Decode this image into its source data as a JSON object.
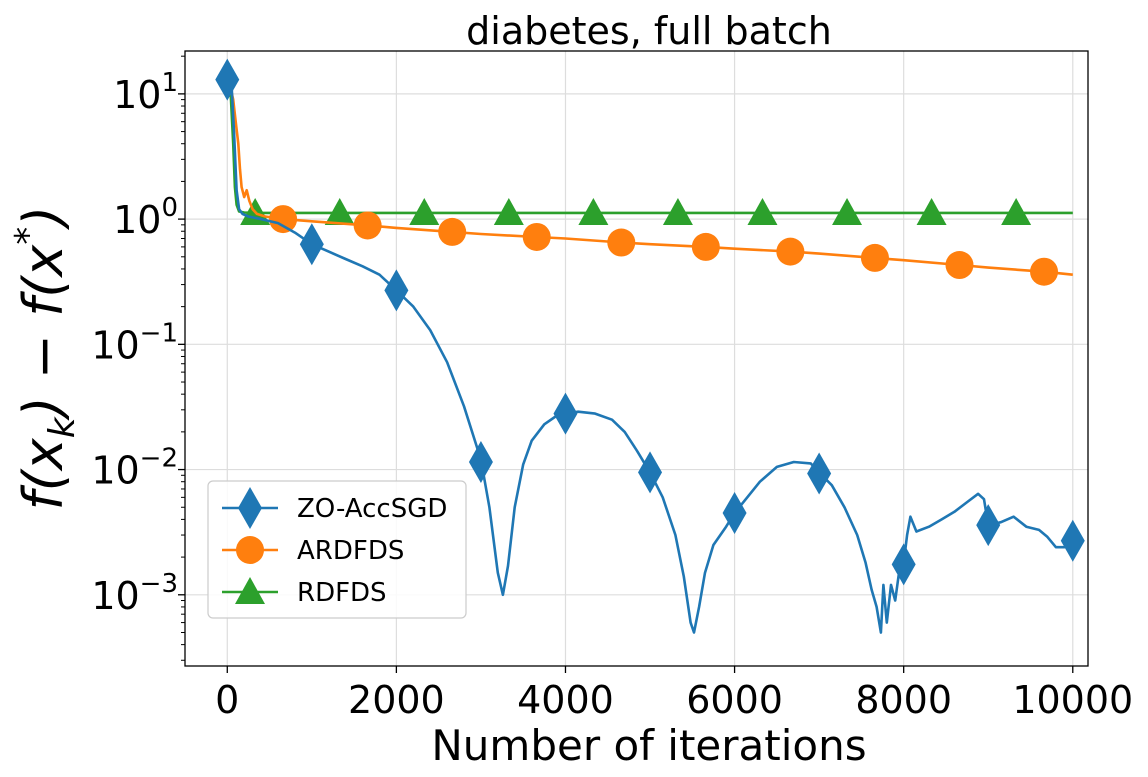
{
  "chart_data": {
    "type": "line",
    "title": "diabetes, full batch",
    "xlabel": "Number of iterations",
    "ylabel_parts": {
      "f1": "f(x",
      "sub": "k",
      "mid": ") − f(x",
      "sup": "*",
      "end": ")"
    },
    "xlim": [
      -500,
      10180
    ],
    "ylim": [
      0.00027,
      22
    ],
    "yscale": "log",
    "grid": true,
    "legend_position": "lower-left",
    "x_ticks": [
      0,
      2000,
      4000,
      6000,
      8000,
      10000
    ],
    "x_tick_labels": [
      "0",
      "2000",
      "4000",
      "6000",
      "8000",
      "10000"
    ],
    "y_ticks": [
      {
        "value": 10,
        "base": "10",
        "exp": "1"
      },
      {
        "value": 1,
        "base": "10",
        "exp": "0"
      },
      {
        "value": 0.1,
        "base": "10",
        "exp": "−1"
      },
      {
        "value": 0.01,
        "base": "10",
        "exp": "−2"
      },
      {
        "value": 0.001,
        "base": "10",
        "exp": "−3"
      }
    ],
    "series": [
      {
        "name": "ZO-AccSGD",
        "color": "#1f77b4",
        "marker": "diamond",
        "points": [
          [
            0,
            13
          ],
          [
            50,
            12
          ],
          [
            80,
            5
          ],
          [
            110,
            1.7
          ],
          [
            140,
            1.2
          ],
          [
            180,
            1.1
          ],
          [
            250,
            1.05
          ],
          [
            400,
            1.0
          ],
          [
            600,
            0.93
          ],
          [
            800,
            0.78
          ],
          [
            1000,
            0.63
          ],
          [
            1200,
            0.55
          ],
          [
            1400,
            0.48
          ],
          [
            1600,
            0.42
          ],
          [
            1800,
            0.36
          ],
          [
            2000,
            0.27
          ],
          [
            2200,
            0.2
          ],
          [
            2400,
            0.13
          ],
          [
            2600,
            0.072
          ],
          [
            2800,
            0.032
          ],
          [
            3000,
            0.012
          ],
          [
            3100,
            0.005
          ],
          [
            3200,
            0.0015
          ],
          [
            3260,
            0.001
          ],
          [
            3320,
            0.0017
          ],
          [
            3400,
            0.005
          ],
          [
            3500,
            0.011
          ],
          [
            3600,
            0.017
          ],
          [
            3750,
            0.023
          ],
          [
            3900,
            0.027
          ],
          [
            4000,
            0.028
          ],
          [
            4150,
            0.029
          ],
          [
            4350,
            0.028
          ],
          [
            4550,
            0.025
          ],
          [
            4700,
            0.02
          ],
          [
            4850,
            0.014
          ],
          [
            5000,
            0.0095
          ],
          [
            5150,
            0.006
          ],
          [
            5300,
            0.003
          ],
          [
            5400,
            0.0014
          ],
          [
            5480,
            0.0006
          ],
          [
            5520,
            0.0005
          ],
          [
            5580,
            0.0008
          ],
          [
            5650,
            0.0015
          ],
          [
            5750,
            0.0025
          ],
          [
            5900,
            0.0035
          ],
          [
            6000,
            0.0045
          ],
          [
            6150,
            0.006
          ],
          [
            6300,
            0.008
          ],
          [
            6500,
            0.0105
          ],
          [
            6700,
            0.0115
          ],
          [
            6900,
            0.0112
          ],
          [
            7000,
            0.0095
          ],
          [
            7150,
            0.0075
          ],
          [
            7300,
            0.005
          ],
          [
            7450,
            0.003
          ],
          [
            7550,
            0.0018
          ],
          [
            7620,
            0.0011
          ],
          [
            7680,
            0.0008
          ],
          [
            7730,
            0.0005
          ],
          [
            7760,
            0.0012
          ],
          [
            7800,
            0.0006
          ],
          [
            7850,
            0.0012
          ],
          [
            7900,
            0.0009
          ],
          [
            7950,
            0.0016
          ],
          [
            8000,
            0.0018
          ],
          [
            8040,
            0.003
          ],
          [
            8080,
            0.0042
          ],
          [
            8150,
            0.0032
          ],
          [
            8300,
            0.0035
          ],
          [
            8450,
            0.004
          ],
          [
            8600,
            0.0046
          ],
          [
            8750,
            0.0055
          ],
          [
            8880,
            0.0064
          ],
          [
            8950,
            0.0058
          ],
          [
            9000,
            0.0036
          ],
          [
            9150,
            0.0038
          ],
          [
            9300,
            0.0042
          ],
          [
            9450,
            0.0035
          ],
          [
            9600,
            0.0033
          ],
          [
            9700,
            0.0029
          ],
          [
            9800,
            0.0024
          ],
          [
            9900,
            0.0024
          ],
          [
            10000,
            0.0027
          ]
        ],
        "marker_points": [
          [
            0,
            13
          ],
          [
            1000,
            0.63
          ],
          [
            2000,
            0.27
          ],
          [
            3000,
            0.0115
          ],
          [
            4000,
            0.028
          ],
          [
            5000,
            0.0095
          ],
          [
            6000,
            0.0045
          ],
          [
            7000,
            0.0093
          ],
          [
            8000,
            0.00175
          ],
          [
            9000,
            0.0036
          ],
          [
            10000,
            0.0027
          ]
        ]
      },
      {
        "name": "ARDFDS",
        "color": "#ff7f0e",
        "marker": "circle",
        "points": [
          [
            0,
            13
          ],
          [
            40,
            11
          ],
          [
            70,
            9
          ],
          [
            100,
            6
          ],
          [
            130,
            4
          ],
          [
            150,
            2.5
          ],
          [
            170,
            1.8
          ],
          [
            200,
            1.5
          ],
          [
            230,
            1.7
          ],
          [
            260,
            1.4
          ],
          [
            300,
            1.2
          ],
          [
            350,
            1.1
          ],
          [
            450,
            1.05
          ],
          [
            660,
            1.0
          ],
          [
            1000,
            0.96
          ],
          [
            1660,
            0.89
          ],
          [
            2000,
            0.85
          ],
          [
            2660,
            0.79
          ],
          [
            3000,
            0.76
          ],
          [
            3660,
            0.72
          ],
          [
            4000,
            0.7
          ],
          [
            4660,
            0.65
          ],
          [
            5000,
            0.63
          ],
          [
            5660,
            0.6
          ],
          [
            6000,
            0.58
          ],
          [
            6660,
            0.55
          ],
          [
            7000,
            0.53
          ],
          [
            7660,
            0.49
          ],
          [
            8000,
            0.47
          ],
          [
            8660,
            0.43
          ],
          [
            9000,
            0.41
          ],
          [
            9660,
            0.38
          ],
          [
            10000,
            0.36
          ]
        ],
        "marker_points": [
          [
            660,
            1.0
          ],
          [
            1660,
            0.89
          ],
          [
            2660,
            0.79
          ],
          [
            3660,
            0.72
          ],
          [
            4660,
            0.65
          ],
          [
            5660,
            0.6
          ],
          [
            6660,
            0.55
          ],
          [
            7660,
            0.49
          ],
          [
            8660,
            0.43
          ],
          [
            9660,
            0.38
          ]
        ]
      },
      {
        "name": "RDFDS",
        "color": "#2ca02c",
        "marker": "triangle",
        "points": [
          [
            0,
            13
          ],
          [
            40,
            10
          ],
          [
            70,
            4
          ],
          [
            90,
            1.8
          ],
          [
            110,
            1.3
          ],
          [
            140,
            1.15
          ],
          [
            200,
            1.13
          ],
          [
            330,
            1.12
          ],
          [
            10000,
            1.12
          ]
        ],
        "marker_points": [
          [
            330,
            1.12
          ],
          [
            1330,
            1.12
          ],
          [
            2330,
            1.12
          ],
          [
            3330,
            1.12
          ],
          [
            4330,
            1.12
          ],
          [
            5330,
            1.12
          ],
          [
            6330,
            1.12
          ],
          [
            7330,
            1.12
          ],
          [
            8330,
            1.12
          ],
          [
            9330,
            1.12
          ]
        ]
      }
    ]
  }
}
